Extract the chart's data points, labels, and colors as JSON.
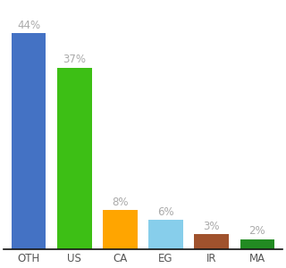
{
  "categories": [
    "OTH",
    "US",
    "CA",
    "EG",
    "IR",
    "MA"
  ],
  "values": [
    44,
    37,
    8,
    6,
    3,
    2
  ],
  "bar_colors": [
    "#4472C4",
    "#3DBF15",
    "#FFA500",
    "#87CEEB",
    "#A0522D",
    "#228B22"
  ],
  "label_color": "#aaaaaa",
  "label_fontsize": 8.5,
  "xlabel_fontsize": 8.5,
  "xlabel_color": "#555555",
  "ylim": [
    0,
    50
  ],
  "bar_width": 0.75,
  "background_color": "#ffffff",
  "spine_color": "#111111"
}
